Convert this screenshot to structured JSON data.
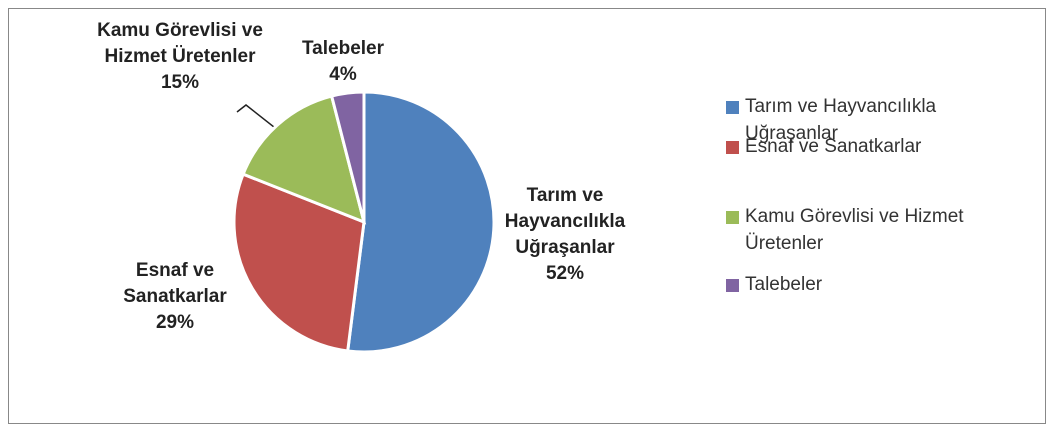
{
  "chart_data": {
    "type": "pie",
    "categories": [
      "Tarım ve Hayvancılıkla Uğraşanlar",
      "Esnaf ve Sanatkarlar",
      "Kamu Görevlisi ve Hizmet Üretenler",
      "Talebeler"
    ],
    "values": [
      52,
      29,
      15,
      4
    ],
    "value_labels": [
      "52%",
      "29%",
      "15%",
      "4%"
    ],
    "colors": [
      "#4f81bd",
      "#c0504d",
      "#9bbb59",
      "#8064a2"
    ],
    "legend": "right"
  }
}
